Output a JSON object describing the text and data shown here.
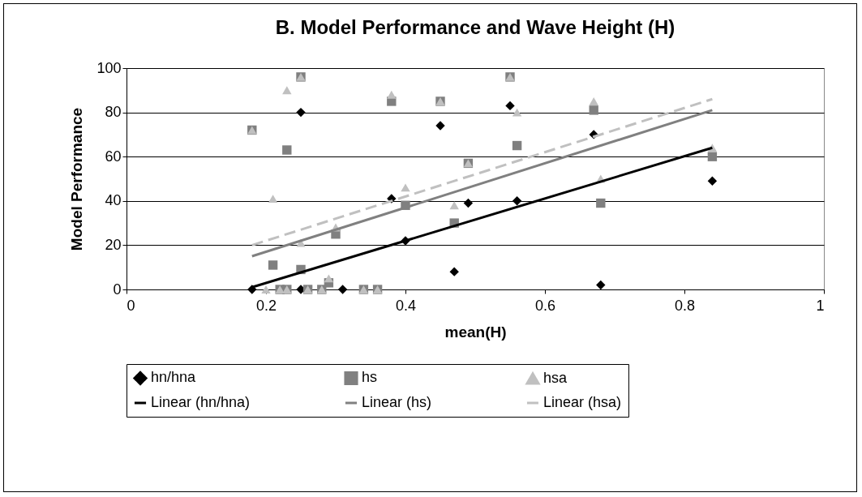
{
  "chart_data": {
    "type": "scatter",
    "title": "B.  Model Performance and Wave Height (H)",
    "xlabel": "mean(H)",
    "ylabel": "Model Performance",
    "xlim": [
      0,
      1
    ],
    "xticks": [
      0,
      0.2,
      0.4,
      0.6,
      0.8,
      1
    ],
    "ylim": [
      0,
      100
    ],
    "yticks": [
      0,
      20,
      40,
      60,
      80,
      100
    ],
    "grid": "y",
    "legend": "bottom",
    "series": [
      {
        "name": "hn/hna",
        "color": "#000000",
        "marker": "diamond",
        "x": [
          0.18,
          0.25,
          0.25,
          0.31,
          0.38,
          0.4,
          0.45,
          0.47,
          0.49,
          0.55,
          0.56,
          0.67,
          0.68,
          0.84
        ],
        "values": [
          0,
          80,
          0,
          0,
          41,
          22,
          74,
          8,
          39,
          83,
          40,
          70,
          2,
          49
        ]
      },
      {
        "name": "hs",
        "color": "#808080",
        "marker": "square",
        "x": [
          0.18,
          0.21,
          0.22,
          0.23,
          0.23,
          0.25,
          0.25,
          0.26,
          0.28,
          0.29,
          0.3,
          0.34,
          0.36,
          0.38,
          0.4,
          0.45,
          0.47,
          0.49,
          0.55,
          0.56,
          0.67,
          0.68,
          0.84
        ],
        "values": [
          72,
          11,
          0,
          63,
          0,
          96,
          9,
          0,
          0,
          3,
          25,
          0,
          0,
          85,
          38,
          85,
          30,
          57,
          96,
          65,
          81,
          39,
          60
        ]
      },
      {
        "name": "hsa",
        "color": "#c0c0c0",
        "marker": "triangle",
        "x": [
          0.18,
          0.2,
          0.21,
          0.22,
          0.23,
          0.23,
          0.25,
          0.25,
          0.26,
          0.28,
          0.29,
          0.3,
          0.34,
          0.36,
          0.38,
          0.4,
          0.45,
          0.47,
          0.49,
          0.55,
          0.56,
          0.67,
          0.68,
          0.84
        ],
        "values": [
          72,
          0,
          41,
          0,
          90,
          0,
          96,
          21,
          0,
          0,
          5,
          28,
          0,
          0,
          88,
          46,
          85,
          38,
          57,
          96,
          80,
          85,
          50,
          64
        ]
      },
      {
        "name": "Linear (hn/hna)",
        "type": "line",
        "color": "#000000",
        "line_style": "solid",
        "x": [
          0.18,
          0.84
        ],
        "values": [
          1,
          64
        ]
      },
      {
        "name": "Linear (hs)",
        "type": "line",
        "color": "#808080",
        "line_style": "solid",
        "x": [
          0.18,
          0.84
        ],
        "values": [
          15,
          81
        ]
      },
      {
        "name": "Linear (hsa)",
        "type": "line",
        "color": "#c0c0c0",
        "line_style": "dashed",
        "x": [
          0.18,
          0.84
        ],
        "values": [
          20,
          86
        ]
      }
    ]
  }
}
